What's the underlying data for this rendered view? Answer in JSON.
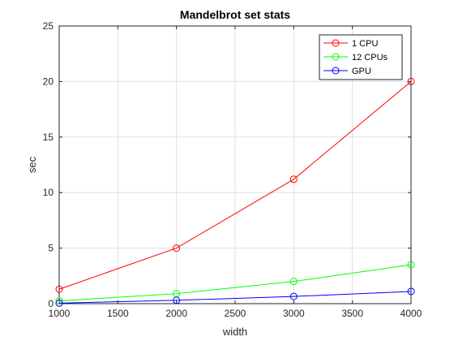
{
  "chart_data": {
    "type": "line",
    "title": "Mandelbrot set stats",
    "xlabel": "width",
    "ylabel": "sec",
    "x": [
      1000,
      2000,
      3000,
      4000
    ],
    "xlim": [
      1000,
      4000
    ],
    "ylim": [
      0,
      25
    ],
    "xticks": [
      1000,
      1500,
      2000,
      2500,
      3000,
      3500,
      4000
    ],
    "yticks": [
      0,
      5,
      10,
      15,
      20,
      25
    ],
    "grid": true,
    "legend_position": "top-right",
    "marker": "circle",
    "series": [
      {
        "name": "1 CPU",
        "color": "#ff0000",
        "values": [
          1.3,
          5.0,
          11.2,
          20.0
        ]
      },
      {
        "name": "12 CPUs",
        "color": "#00ff00",
        "values": [
          0.25,
          0.9,
          2.0,
          3.5
        ]
      },
      {
        "name": "GPU",
        "color": "#0000ff",
        "values": [
          0.05,
          0.3,
          0.65,
          1.1
        ]
      }
    ]
  }
}
